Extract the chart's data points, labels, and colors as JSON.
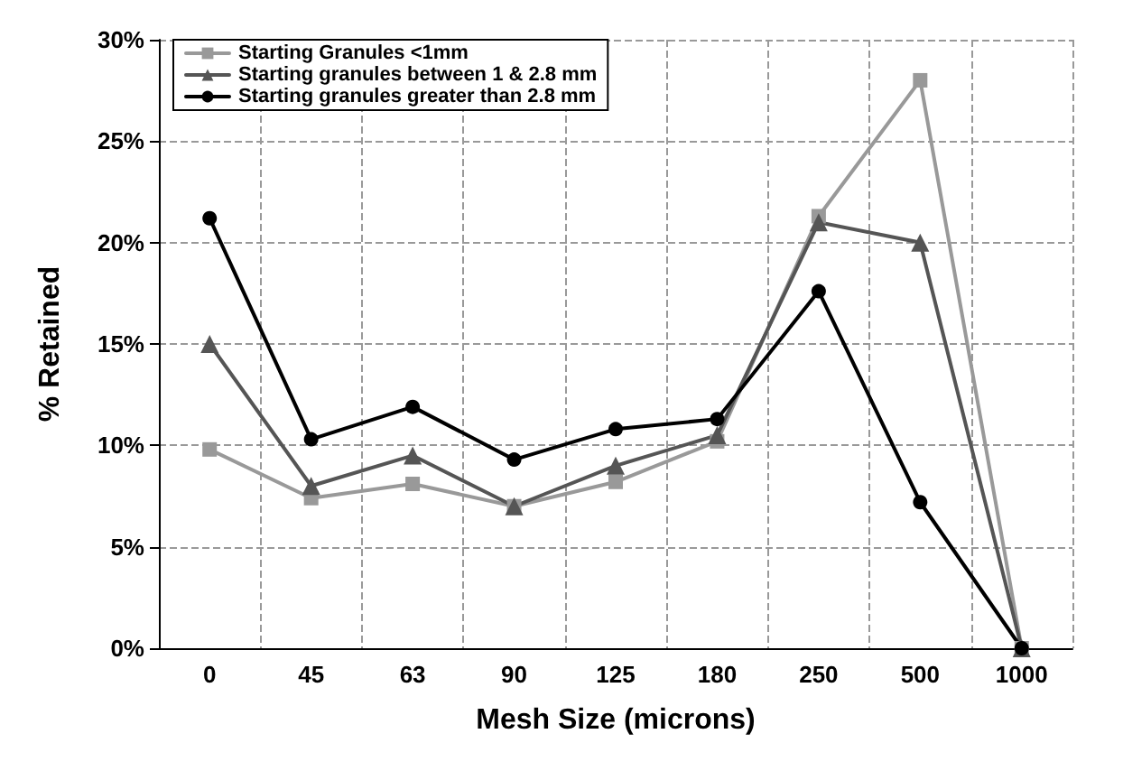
{
  "chart_data": {
    "type": "line",
    "xlabel": "Mesh Size (microns)",
    "ylabel": "% Retained",
    "categories": [
      "0",
      "45",
      "63",
      "90",
      "125",
      "180",
      "250",
      "500",
      "1000"
    ],
    "series": [
      {
        "name": "Starting Granules <1mm",
        "color": "#999999",
        "marker": "square",
        "values": [
          9.8,
          7.4,
          8.1,
          7.0,
          8.2,
          10.2,
          21.3,
          28.0,
          0
        ]
      },
      {
        "name": "Starting granules between 1 & 2.8 mm",
        "color": "#555555",
        "marker": "triangle",
        "values": [
          15.0,
          8.0,
          9.5,
          7.0,
          9.0,
          10.5,
          21.0,
          20.0,
          0
        ]
      },
      {
        "name": "Starting granules greater than 2.8 mm",
        "color": "#000000",
        "marker": "circle",
        "values": [
          21.2,
          10.3,
          11.9,
          9.3,
          10.8,
          11.3,
          17.6,
          7.2,
          0
        ]
      }
    ],
    "ylim": [
      0,
      30
    ],
    "yticks": [
      {
        "value": 0,
        "label": "0%"
      },
      {
        "value": 5,
        "label": "5%"
      },
      {
        "value": 10,
        "label": "10%"
      },
      {
        "value": 15,
        "label": "15%"
      },
      {
        "value": 20,
        "label": "20%"
      },
      {
        "value": 25,
        "label": "25%"
      },
      {
        "value": 30,
        "label": "30%"
      }
    ],
    "grid": true,
    "legend": "top left",
    "line_style": "solid"
  }
}
